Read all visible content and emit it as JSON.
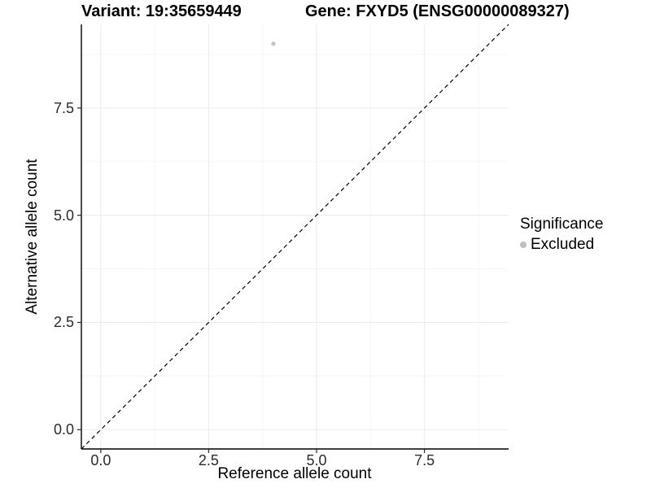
{
  "chart_data": {
    "type": "scatter",
    "titles": {
      "variant": "Variant: 19:35659449",
      "gene": "Gene: FXYD5 (ENSG00000089327)"
    },
    "xlabel": "Reference allele count",
    "ylabel": "Alternative allele count",
    "xlim": [
      -0.45,
      9.45
    ],
    "ylim": [
      -0.45,
      9.45
    ],
    "xticks": [
      0.0,
      2.5,
      5.0,
      7.5
    ],
    "yticks": [
      0.0,
      2.5,
      5.0,
      7.5
    ],
    "xtick_labels": [
      "0.0",
      "2.5",
      "5.0",
      "7.5"
    ],
    "ytick_labels": [
      "0.0",
      "2.5",
      "5.0",
      "7.5"
    ],
    "minor_ticks": [
      1.25,
      3.75,
      6.25,
      8.75
    ],
    "grid": true,
    "points": [
      {
        "x": 4,
        "y": 9,
        "series": "Excluded",
        "color": "#c2c2c2",
        "radius": 2.6
      }
    ],
    "reference_line": {
      "type": "identity",
      "style": "dashed",
      "color": "#000000",
      "from": [
        -0.45,
        -0.45
      ],
      "to": [
        9.45,
        9.45
      ]
    },
    "legend": {
      "title": "Significance",
      "position": "right",
      "items": [
        {
          "label": "Excluded",
          "color": "#bebebe"
        }
      ]
    },
    "colors": {
      "grid_major": "#ebebeb",
      "grid_minor": "#f5f5f5",
      "axis_line": "#000000",
      "tick_mark": "#333333"
    }
  }
}
